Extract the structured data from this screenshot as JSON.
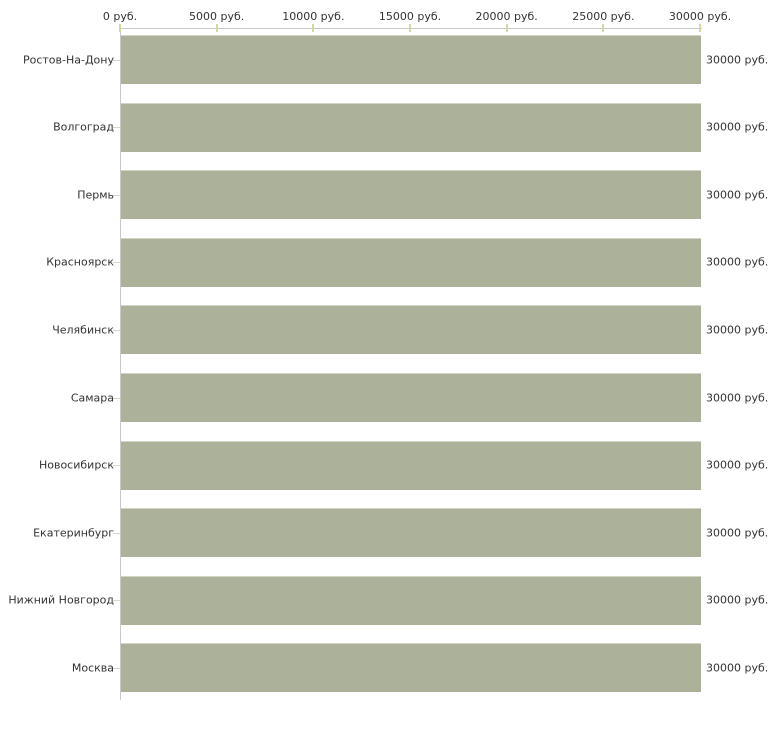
{
  "chart_data": {
    "type": "bar",
    "orientation": "horizontal",
    "title": "",
    "xlabel": "руб.",
    "ylabel": "",
    "categories": [
      "Ростов-На-Дону",
      "Волгоград",
      "Пермь",
      "Красноярск",
      "Челябинск",
      "Самара",
      "Новосибирск",
      "Екатеринбург",
      "Нижний Новгород",
      "Москва"
    ],
    "values": [
      30000,
      30000,
      30000,
      30000,
      30000,
      30000,
      30000,
      30000,
      30000,
      30000
    ],
    "bar_value_labels": [
      "30000 руб.",
      "30000 руб.",
      "30000 руб.",
      "30000 руб.",
      "30000 руб.",
      "30000 руб.",
      "30000 руб.",
      "30000 руб.",
      "30000 руб.",
      "30000 руб."
    ],
    "x_ticks": [
      {
        "value": 0,
        "label": "0 руб."
      },
      {
        "value": 5000,
        "label": "5000 руб."
      },
      {
        "value": 10000,
        "label": "10000 руб."
      },
      {
        "value": 15000,
        "label": "15000 руб."
      },
      {
        "value": 20000,
        "label": "20000 руб."
      },
      {
        "value": 25000,
        "label": "25000 руб."
      },
      {
        "value": 30000,
        "label": "30000 руб."
      }
    ],
    "xlim": [
      0,
      30000
    ],
    "grid": false,
    "legend": null,
    "colors": {
      "bar_fill": "#acb199",
      "bar_top_edge": "#d2d4c4",
      "axis_line": "#c9c9c9",
      "x_tick_mark": "#d6d6a6",
      "y_tick_mark": "#d8d8c2",
      "text": "#333333",
      "background": "#ffffff"
    }
  }
}
